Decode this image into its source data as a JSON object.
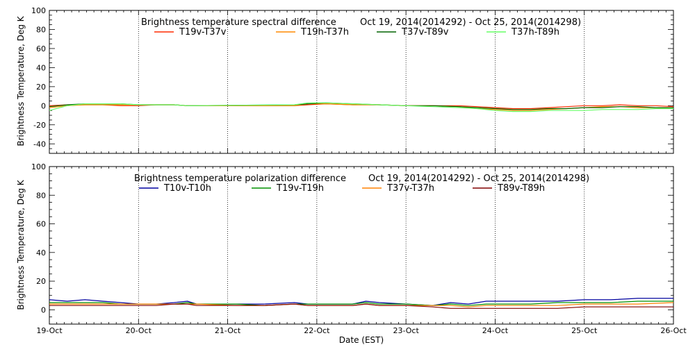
{
  "xlabel": "Date (EST)",
  "x_tick_labels": [
    "19-Oct",
    "20-Oct",
    "21-Oct",
    "22-Oct",
    "23-Oct",
    "24-Oct",
    "25-Oct",
    "26-Oct"
  ],
  "chart_data": [
    {
      "type": "line",
      "title": "Brightness temperature spectral difference",
      "date_range": "Oct 19, 2014(2014292) - Oct 25, 2014(2014298)",
      "ylabel": "Brightness Temperature, Deg K",
      "ylim": [
        -50,
        100
      ],
      "yticks": [
        -40,
        -20,
        0,
        20,
        40,
        60,
        80,
        100
      ],
      "xlim_days": [
        0,
        7
      ],
      "grid": "vertical dotted lines at each day",
      "series": [
        {
          "name": "T19v-T37v",
          "color": "#ff2a00",
          "x": [
            0.0,
            0.2,
            0.4,
            0.6,
            0.8,
            1.0,
            1.2,
            1.4,
            1.55,
            1.7,
            2.75,
            2.9,
            3.1,
            3.4,
            3.7,
            4.0,
            4.3,
            4.6,
            4.8,
            5.0,
            5.2,
            5.4,
            5.6,
            5.8,
            6.0,
            6.2,
            6.4,
            6.6,
            6.8,
            7.0
          ],
          "values": [
            0,
            1,
            1,
            1,
            0,
            0,
            1,
            1,
            0,
            0,
            0,
            1,
            2,
            1,
            1,
            0,
            0,
            0,
            -1,
            -2,
            -3,
            -3,
            -2,
            -1,
            0,
            0,
            1,
            0,
            0,
            -1
          ]
        },
        {
          "name": "T19h-T37h",
          "color": "#ff8a00",
          "x": [
            0.0,
            0.2,
            0.4,
            0.6,
            0.8,
            1.0,
            1.2,
            1.4,
            1.55,
            1.7,
            2.75,
            2.9,
            3.1,
            3.4,
            3.7,
            4.0,
            4.3,
            4.6,
            4.8,
            5.0,
            5.2,
            5.4,
            5.6,
            5.8,
            6.0,
            6.2,
            6.4,
            6.6,
            6.8,
            7.0
          ],
          "values": [
            -2,
            0,
            1,
            1,
            1,
            1,
            1,
            1,
            0,
            0,
            0,
            2,
            2,
            1,
            1,
            0,
            0,
            -1,
            -3,
            -4,
            -5,
            -5,
            -4,
            -3,
            -2,
            -1,
            -1,
            -2,
            -2,
            -3
          ]
        },
        {
          "name": "T37v-T89v",
          "color": "#006400",
          "x": [
            0.0,
            0.2,
            0.4,
            0.6,
            0.8,
            1.0,
            1.2,
            1.4,
            1.55,
            2.75,
            2.9,
            3.1,
            3.4,
            3.7,
            4.0,
            4.3,
            4.6,
            4.8,
            5.0,
            5.2,
            5.4,
            5.6,
            5.8,
            6.0,
            6.2,
            6.4,
            6.6,
            6.8,
            7.0
          ],
          "values": [
            -1,
            1,
            2,
            2,
            2,
            1,
            1,
            1,
            0,
            1,
            2,
            3,
            2,
            1,
            0,
            0,
            -1,
            -2,
            -3,
            -4,
            -4,
            -3,
            -3,
            -2,
            -2,
            -1,
            -1,
            -2,
            -2
          ]
        },
        {
          "name": "T37h-T89h",
          "color": "#66ff66",
          "x": [
            0.0,
            0.2,
            0.4,
            0.6,
            0.8,
            1.0,
            1.2,
            1.4,
            1.55,
            2.75,
            2.9,
            3.1,
            3.4,
            3.7,
            4.0,
            4.3,
            4.6,
            4.8,
            5.0,
            5.2,
            5.4,
            5.6,
            5.8,
            6.0,
            6.2,
            6.4,
            6.6,
            6.8,
            7.0
          ],
          "values": [
            -5,
            0,
            2,
            2,
            2,
            1,
            1,
            1,
            0,
            1,
            3,
            3,
            2,
            1,
            0,
            -1,
            -2,
            -3,
            -5,
            -6,
            -6,
            -5,
            -5,
            -5,
            -4,
            -4,
            -4,
            -3,
            -3
          ]
        }
      ]
    },
    {
      "type": "line",
      "title": "Brightness temperature polarization difference",
      "date_range": "Oct 19, 2014(2014292) - Oct 25, 2014(2014298)",
      "ylabel": "Brightness Temperature, Deg K",
      "ylim": [
        -10,
        100
      ],
      "yticks": [
        0,
        20,
        40,
        60,
        80,
        100
      ],
      "xlim_days": [
        0,
        7
      ],
      "grid": "vertical dotted lines at each day",
      "series": [
        {
          "name": "T10v-T10h",
          "color": "#0000a0",
          "x": [
            0.0,
            0.2,
            0.4,
            0.6,
            0.8,
            1.0,
            1.2,
            1.4,
            1.55,
            1.65,
            2.1,
            2.4,
            2.75,
            2.9,
            3.1,
            3.4,
            3.55,
            3.7,
            4.0,
            4.3,
            4.5,
            4.7,
            4.9,
            5.1,
            5.4,
            5.7,
            6.0,
            6.3,
            6.6,
            7.0
          ],
          "values": [
            7,
            6,
            7,
            6,
            5,
            4,
            4,
            5,
            6,
            4,
            4,
            4,
            5,
            4,
            4,
            4,
            6,
            5,
            4,
            3,
            5,
            4,
            6,
            6,
            6,
            6,
            7,
            7,
            8,
            8
          ]
        },
        {
          "name": "T19v-T19h",
          "color": "#009000",
          "x": [
            0.0,
            0.2,
            0.4,
            0.6,
            0.8,
            1.0,
            1.2,
            1.4,
            1.55,
            1.65,
            2.1,
            2.4,
            2.75,
            2.9,
            3.1,
            3.4,
            3.55,
            3.7,
            4.0,
            4.3,
            4.5,
            4.7,
            4.9,
            5.1,
            5.4,
            5.7,
            6.0,
            6.3,
            6.6,
            7.0
          ],
          "values": [
            5,
            5,
            5,
            5,
            4,
            4,
            4,
            4,
            5,
            4,
            4,
            3,
            4,
            4,
            4,
            4,
            5,
            4,
            4,
            3,
            4,
            3,
            4,
            4,
            4,
            5,
            5,
            5,
            6,
            6
          ]
        },
        {
          "name": "T37v-T37h",
          "color": "#ff8000",
          "x": [
            0.0,
            0.2,
            0.4,
            0.6,
            0.8,
            1.0,
            1.2,
            1.4,
            1.55,
            1.65,
            2.1,
            2.4,
            2.75,
            2.9,
            3.1,
            3.4,
            3.55,
            3.7,
            4.0,
            4.3,
            4.5,
            4.7,
            4.9,
            5.1,
            5.4,
            5.7,
            6.0,
            6.3,
            6.6,
            7.0
          ],
          "values": [
            4,
            4,
            4,
            4,
            4,
            4,
            4,
            4,
            4,
            4,
            3,
            3,
            4,
            3,
            3,
            3,
            4,
            3,
            3,
            3,
            3,
            2,
            3,
            3,
            3,
            3,
            4,
            4,
            4,
            5
          ]
        },
        {
          "name": "T89v-T89h",
          "color": "#800000",
          "x": [
            0.0,
            0.2,
            0.4,
            0.6,
            0.8,
            1.0,
            1.2,
            1.4,
            1.55,
            1.65,
            2.1,
            2.4,
            2.75,
            2.9,
            3.1,
            3.4,
            3.55,
            3.7,
            4.0,
            4.3,
            4.5,
            4.7,
            4.9,
            5.1,
            5.4,
            5.7,
            6.0,
            6.3,
            6.6,
            7.0
          ],
          "values": [
            3,
            3,
            3,
            3,
            3,
            3,
            3,
            4,
            4,
            3,
            3,
            3,
            4,
            3,
            3,
            3,
            4,
            3,
            3,
            2,
            1,
            1,
            1,
            1,
            1,
            1,
            2,
            2,
            2,
            2
          ]
        }
      ]
    }
  ]
}
